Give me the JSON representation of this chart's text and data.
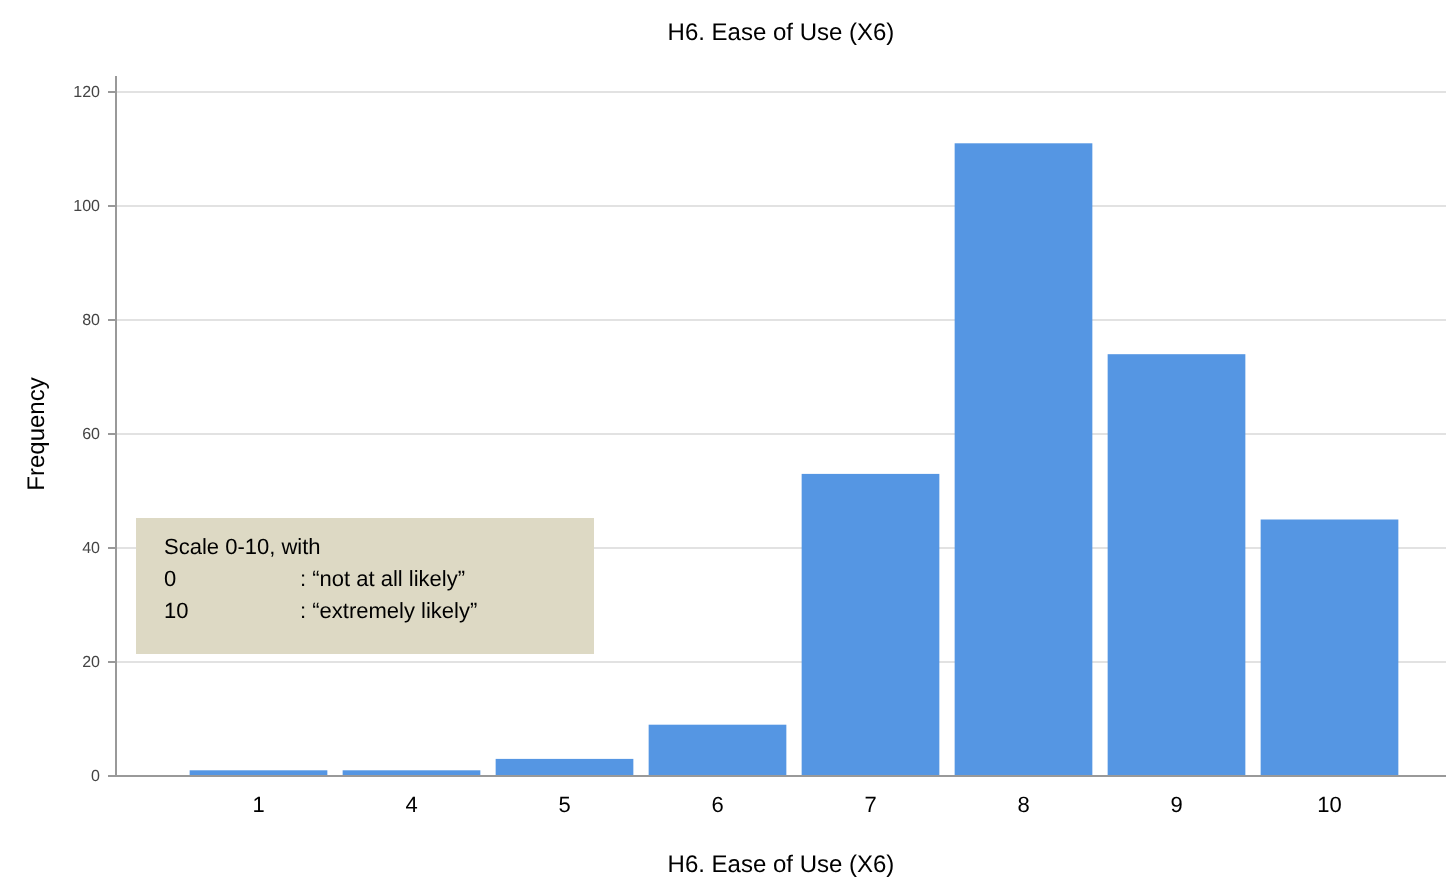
{
  "chart_data": {
    "type": "bar",
    "title": "H6. Ease of Use (X6)",
    "xlabel": "H6. Ease of Use (X6)",
    "ylabel": "Frequency",
    "categories": [
      "1",
      "4",
      "5",
      "6",
      "7",
      "8",
      "9",
      "10"
    ],
    "values": [
      1,
      1,
      3,
      9,
      53,
      111,
      74,
      45
    ],
    "color": "#5596e3",
    "ylim": [
      0,
      120
    ],
    "yticks": [
      0,
      20,
      40,
      60,
      80,
      100,
      120
    ],
    "grid": "y",
    "annotations": [
      "Scale 0-10, with",
      "0 : “not at all likely”",
      "10 : “extremely likely”"
    ]
  }
}
